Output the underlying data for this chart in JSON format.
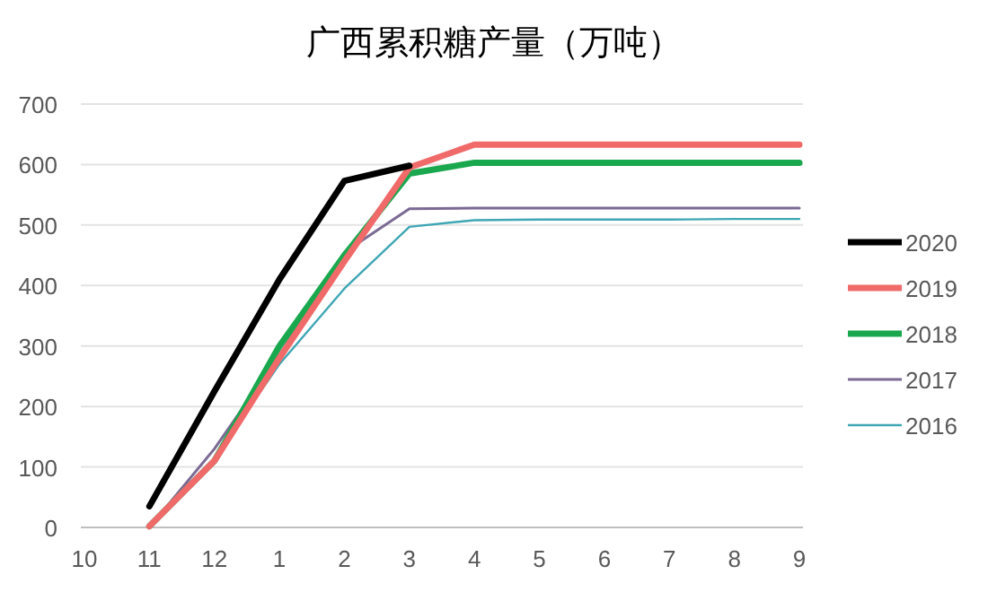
{
  "chart_data": {
    "type": "line",
    "title": "广西累积糖产量（万吨）",
    "categories": [
      "10",
      "11",
      "12",
      "1",
      "2",
      "3",
      "4",
      "5",
      "6",
      "7",
      "8",
      "9"
    ],
    "series": [
      {
        "name": "2020",
        "color": "#000000",
        "values": [
          null,
          35,
          225,
          410,
          573,
          598,
          null,
          null,
          null,
          null,
          null,
          null
        ]
      },
      {
        "name": "2019",
        "color": "#f06a6a",
        "values": [
          null,
          2,
          110,
          280,
          440,
          595,
          633,
          633,
          633,
          633,
          633,
          633
        ]
      },
      {
        "name": "2018",
        "color": "#1aa84e",
        "values": [
          null,
          2,
          110,
          300,
          450,
          585,
          603,
          603,
          603,
          603,
          603,
          603
        ]
      },
      {
        "name": "2017",
        "color": "#7b6a94",
        "values": [
          null,
          0,
          130,
          285,
          455,
          527,
          528,
          528,
          528,
          528,
          528,
          528
        ]
      },
      {
        "name": "2016",
        "color": "#3ea6b4",
        "values": [
          null,
          0,
          115,
          270,
          395,
          497,
          508,
          509,
          509,
          509,
          510,
          510
        ]
      }
    ],
    "ylim": [
      0,
      700
    ],
    "yticks": [
      0,
      100,
      200,
      300,
      400,
      500,
      600,
      700
    ],
    "grid": "y",
    "legend": "right",
    "marker": "none",
    "line_style": "solid"
  }
}
